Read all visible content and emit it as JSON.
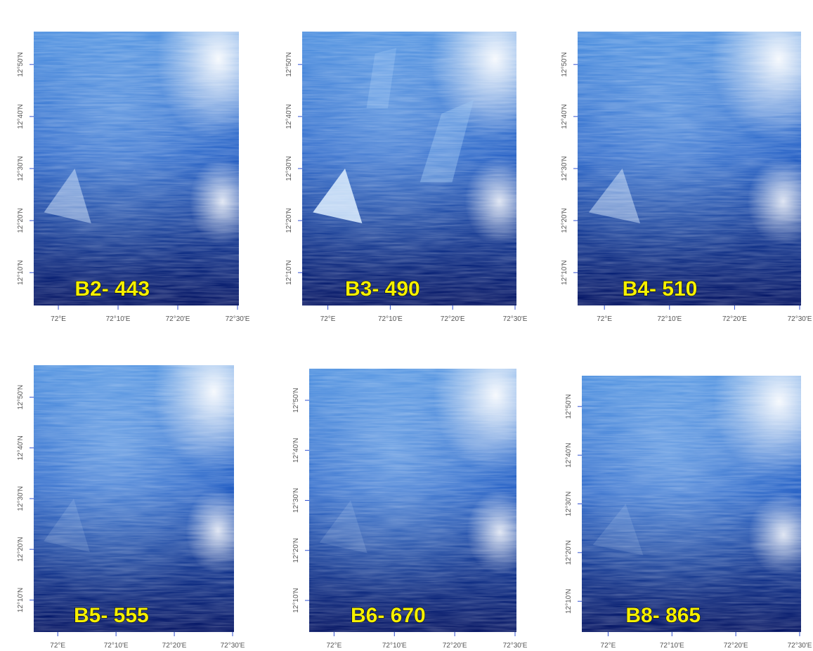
{
  "panels": [
    {
      "label": "B2- 443",
      "bottom_ticks": [
        "72°E",
        "72°10'E",
        "72°20'E",
        "72°30'E"
      ],
      "left_ticks": [
        "12°50'N",
        "12°40'N",
        "12°30'N",
        "12°20'N",
        "12°10'N"
      ]
    },
    {
      "label": "B3- 490",
      "bottom_ticks": [
        "72°E",
        "72°10'E",
        "72°20'E",
        "72°30'E"
      ],
      "left_ticks": [
        "12°50'N",
        "12°40'N",
        "12°30'N",
        "12°20'N",
        "12°10'N"
      ]
    },
    {
      "label": "B4- 510",
      "bottom_ticks": [
        "72°E",
        "72°10'E",
        "72°20'E",
        "72°30'E"
      ],
      "left_ticks": [
        "12°50'N",
        "12°40'N",
        "12°30'N",
        "12°20'N",
        "12°10'N"
      ]
    },
    {
      "label": "B5- 555",
      "bottom_ticks": [
        "72°E",
        "72°10'E",
        "72°20'E",
        "72°30'E"
      ],
      "left_ticks": [
        "12°50'N",
        "12°40'N",
        "12°30'N",
        "12°20'N",
        "12°10'N"
      ]
    },
    {
      "label": "B6- 670",
      "bottom_ticks": [
        "72°E",
        "72°10'E",
        "72°20'E",
        "72°30'E"
      ],
      "left_ticks": [
        "12°50'N",
        "12°40'N",
        "12°30'N",
        "12°20'N",
        "12°10'N"
      ]
    },
    {
      "label": "B8- 865",
      "bottom_ticks": [
        "72°E",
        "72°10'E",
        "72°20'E",
        "72°30'E"
      ],
      "left_ticks": [
        "12°50'N",
        "12°40'N",
        "12°30'N",
        "12°20'N",
        "12°10'N"
      ]
    }
  ]
}
